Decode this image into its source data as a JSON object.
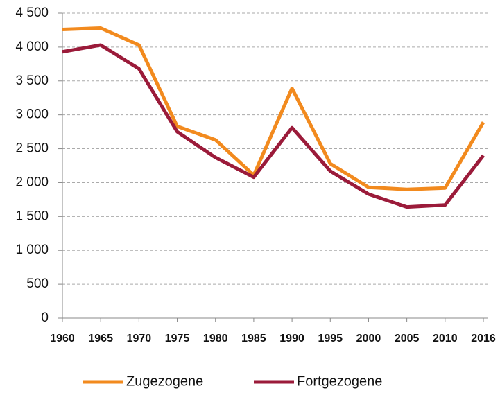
{
  "chart_data": {
    "type": "line",
    "categories": [
      "1960",
      "1965",
      "1970",
      "1975",
      "1980",
      "1985",
      "1990",
      "1995",
      "2000",
      "2005",
      "2010",
      "2016"
    ],
    "series": [
      {
        "name": "Zugezogene",
        "color": "#f28a1e",
        "values": [
          4260,
          4280,
          4030,
          2830,
          2630,
          2110,
          3390,
          2280,
          1930,
          1900,
          1920,
          2890
        ]
      },
      {
        "name": "Fortgezogene",
        "color": "#9b1b3a",
        "values": [
          3930,
          4030,
          3680,
          2750,
          2370,
          2080,
          2810,
          2170,
          1830,
          1640,
          1670,
          2400
        ]
      }
    ],
    "ylim": [
      0,
      4500
    ],
    "yticks": [
      0,
      500,
      {
        "value": 1000,
        "label": "1 000"
      },
      {
        "value": 1500,
        "label": "1 500"
      },
      {
        "value": 2000,
        "label": "2 000"
      },
      {
        "value": 2500,
        "label": "2 500"
      },
      {
        "value": 3000,
        "label": "3 000"
      },
      {
        "value": 3500,
        "label": "3 500"
      },
      {
        "value": 4000,
        "label": "4 000"
      },
      {
        "value": 4500,
        "label": "4 500"
      }
    ],
    "grid": true,
    "legend": "bottom"
  }
}
